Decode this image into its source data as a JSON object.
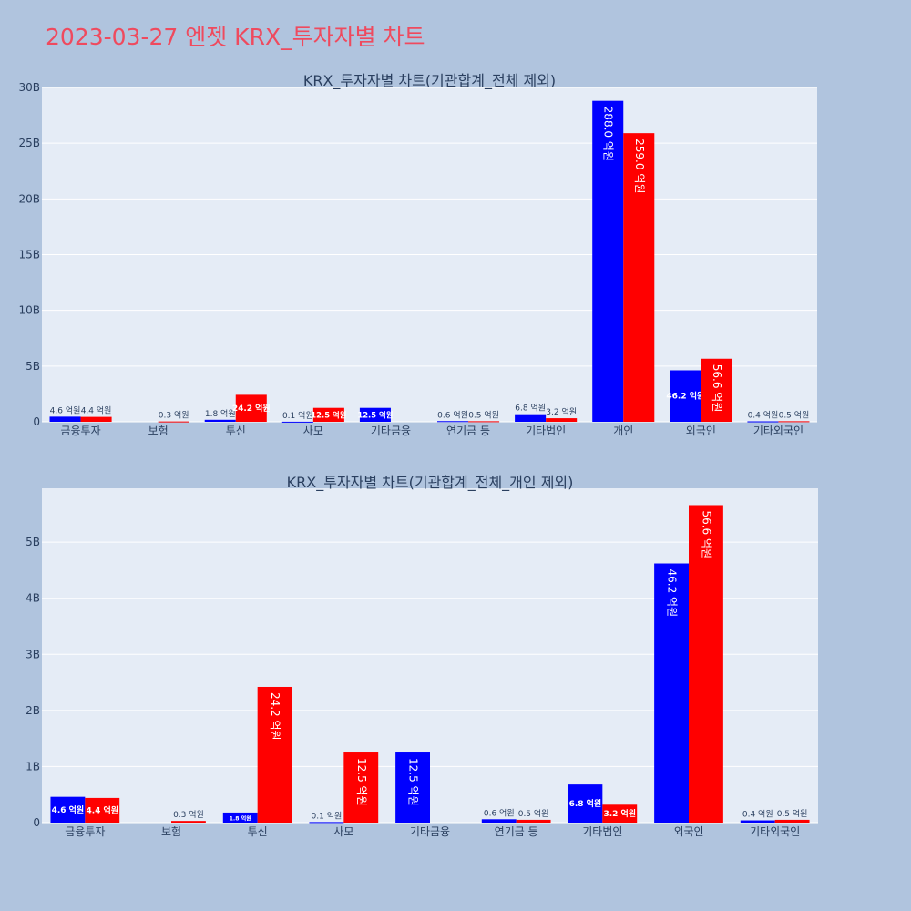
{
  "title": "2023-03-27 엔젯 KRX_투자자별 차트",
  "colors": {
    "page_bg": "#b0c4de",
    "plot_bg": "#e5ecf6",
    "grid": "#ffffff",
    "title": "#ef4a5e",
    "text": "#2a3f5f",
    "series_blue": "#0000ff",
    "series_red": "#ff0000"
  },
  "chart_data": [
    {
      "type": "bar",
      "title": "KRX_투자자별 차트(기관합계_전체 제외)",
      "categories": [
        "금융투자",
        "보험",
        "투신",
        "사모",
        "기타금융",
        "연기금 등",
        "기타법인",
        "개인",
        "외국인",
        "기타외국인"
      ],
      "ylim": [
        0,
        30000000000
      ],
      "yticks": [
        0,
        5000000000,
        10000000000,
        15000000000,
        20000000000,
        25000000000,
        30000000000
      ],
      "ytick_labels": [
        "0",
        "5B",
        "10B",
        "15B",
        "20B",
        "25B",
        "30B"
      ],
      "grid": true,
      "series": [
        {
          "color": "#0000ff",
          "values": [
            460000000,
            0,
            180000000,
            10000000,
            1250000000,
            60000000,
            680000000,
            28800000000,
            4620000000,
            40000000
          ],
          "labels": [
            "4.6 억원",
            "",
            "1.8 억원",
            "0.1 억원",
            "12.5 억원",
            "0.6 억원",
            "6.8 억원",
            "288.0 억원",
            "46.2 억원",
            "0.4 억원"
          ]
        },
        {
          "color": "#ff0000",
          "values": [
            440000000,
            30000000,
            2420000000,
            1250000000,
            0,
            50000000,
            320000000,
            25900000000,
            5660000000,
            50000000
          ],
          "labels": [
            "4.4 억원",
            "0.3 억원",
            "24.2 억원",
            "12.5 억원",
            "",
            "0.5 억원",
            "3.2 억원",
            "259.0 억원",
            "56.6 억원",
            "0.5 억원"
          ]
        }
      ]
    },
    {
      "type": "bar",
      "title": "KRX_투자자별 차트(기관합계_전체_개인 제외)",
      "categories": [
        "금융투자",
        "보험",
        "투신",
        "사모",
        "기타금융",
        "연기금 등",
        "기타법인",
        "외국인",
        "기타외국인"
      ],
      "ylim": [
        0,
        5960000000
      ],
      "yticks": [
        0,
        1000000000,
        2000000000,
        3000000000,
        4000000000,
        5000000000
      ],
      "ytick_labels": [
        "0",
        "1B",
        "2B",
        "3B",
        "4B",
        "5B"
      ],
      "grid": true,
      "series": [
        {
          "color": "#0000ff",
          "values": [
            460000000,
            0,
            180000000,
            10000000,
            1250000000,
            60000000,
            680000000,
            4620000000,
            40000000
          ],
          "labels": [
            "4.6 억원",
            "",
            "1.8 억원",
            "0.1 억원",
            "12.5 억원",
            "0.6 억원",
            "6.8 억원",
            "46.2 억원",
            "0.4 억원"
          ]
        },
        {
          "color": "#ff0000",
          "values": [
            440000000,
            30000000,
            2420000000,
            1250000000,
            0,
            50000000,
            320000000,
            5660000000,
            50000000
          ],
          "labels": [
            "4.4 억원",
            "0.3 억원",
            "24.2 억원",
            "12.5 억원",
            "",
            "0.5 억원",
            "3.2 억원",
            "56.6 억원",
            "0.5 억원"
          ]
        }
      ]
    }
  ]
}
